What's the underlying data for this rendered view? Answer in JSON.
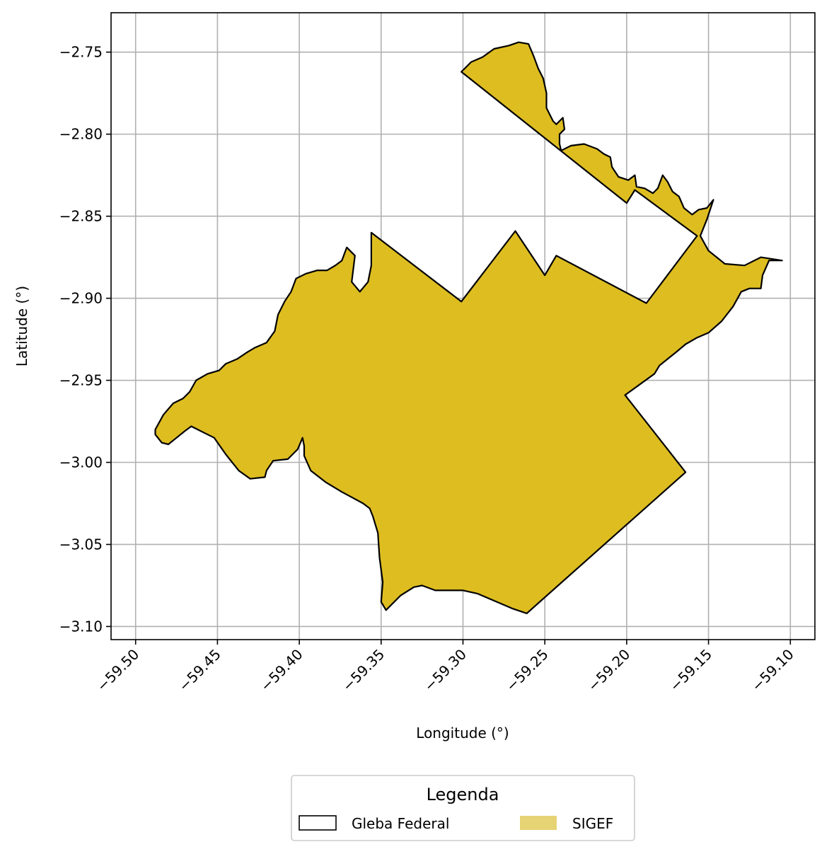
{
  "chart_data": {
    "type": "map",
    "xlabel": "Longitude (°)",
    "ylabel": "Latitude (°)",
    "xlim": [
      -59.515,
      -59.085
    ],
    "ylim": [
      -3.108,
      -2.726
    ],
    "xticks": [
      -59.5,
      -59.45,
      -59.4,
      -59.35,
      -59.3,
      -59.25,
      -59.2,
      -59.15,
      -59.1
    ],
    "xtick_labels": [
      "−59.50",
      "−59.45",
      "−59.40",
      "−59.35",
      "−59.30",
      "−59.25",
      "−59.20",
      "−59.15",
      "−59.10"
    ],
    "yticks": [
      -2.75,
      -2.8,
      -2.85,
      -2.9,
      -2.95,
      -3.0,
      -3.05,
      -3.1
    ],
    "ytick_labels": [
      "−2.75",
      "−2.80",
      "−2.85",
      "−2.90",
      "−2.95",
      "−3.00",
      "−3.05",
      "−3.10"
    ],
    "grid": true,
    "legend": {
      "title": "Legenda",
      "placement": "bottom-center",
      "entries": [
        {
          "label": "Gleba Federal",
          "style": "outline",
          "color": "#000000"
        },
        {
          "label": "SIGEF",
          "style": "fill",
          "color": "#e6d374"
        }
      ]
    },
    "colors": {
      "polygon_fill": "#debd21",
      "polygon_edge": "#000000",
      "grid": "#b0b0b0"
    },
    "polygons": [
      {
        "name": "main",
        "coords": [
          [
            -59.488,
            -2.98
          ],
          [
            -59.483,
            -2.971
          ],
          [
            -59.477,
            -2.964
          ],
          [
            -59.471,
            -2.961
          ],
          [
            -59.467,
            -2.957
          ],
          [
            -59.463,
            -2.95
          ],
          [
            -59.456,
            -2.946
          ],
          [
            -59.449,
            -2.944
          ],
          [
            -59.445,
            -2.94
          ],
          [
            -59.438,
            -2.937
          ],
          [
            -59.432,
            -2.933
          ],
          [
            -59.427,
            -2.93
          ],
          [
            -59.42,
            -2.927
          ],
          [
            -59.415,
            -2.92
          ],
          [
            -59.413,
            -2.91
          ],
          [
            -59.409,
            -2.902
          ],
          [
            -59.405,
            -2.896
          ],
          [
            -59.402,
            -2.888
          ],
          [
            -59.396,
            -2.885
          ],
          [
            -59.389,
            -2.883
          ],
          [
            -59.383,
            -2.883
          ],
          [
            -59.378,
            -2.88
          ],
          [
            -59.374,
            -2.877
          ],
          [
            -59.371,
            -2.869
          ],
          [
            -59.366,
            -2.874
          ],
          [
            -59.367,
            -2.882
          ],
          [
            -59.368,
            -2.89
          ],
          [
            -59.363,
            -2.896
          ],
          [
            -59.358,
            -2.89
          ],
          [
            -59.356,
            -2.88
          ],
          [
            -59.356,
            -2.86
          ],
          [
            -59.301,
            -2.902
          ],
          [
            -59.268,
            -2.859
          ],
          [
            -59.25,
            -2.886
          ],
          [
            -59.243,
            -2.874
          ],
          [
            -59.188,
            -2.903
          ],
          [
            -59.157,
            -2.862
          ],
          [
            -59.195,
            -2.834
          ],
          [
            -59.2,
            -2.842
          ],
          [
            -59.301,
            -2.762
          ],
          [
            -59.295,
            -2.756
          ],
          [
            -59.288,
            -2.753
          ],
          [
            -59.281,
            -2.748
          ],
          [
            -59.272,
            -2.746
          ],
          [
            -59.266,
            -2.744
          ],
          [
            -59.26,
            -2.745
          ],
          [
            -59.257,
            -2.752
          ],
          [
            -59.254,
            -2.76
          ],
          [
            -59.251,
            -2.766
          ],
          [
            -59.249,
            -2.775
          ],
          [
            -59.249,
            -2.784
          ],
          [
            -59.245,
            -2.792
          ],
          [
            -59.243,
            -2.794
          ],
          [
            -59.239,
            -2.79
          ],
          [
            -59.238,
            -2.797
          ],
          [
            -59.241,
            -2.8
          ],
          [
            -59.241,
            -2.806
          ],
          [
            -59.24,
            -2.81
          ],
          [
            -59.234,
            -2.807
          ],
          [
            -59.226,
            -2.806
          ],
          [
            -59.218,
            -2.809
          ],
          [
            -59.214,
            -2.812
          ],
          [
            -59.21,
            -2.814
          ],
          [
            -59.209,
            -2.82
          ],
          [
            -59.205,
            -2.826
          ],
          [
            -59.199,
            -2.828
          ],
          [
            -59.195,
            -2.825
          ],
          [
            -59.194,
            -2.832
          ],
          [
            -59.189,
            -2.833
          ],
          [
            -59.184,
            -2.836
          ],
          [
            -59.181,
            -2.833
          ],
          [
            -59.178,
            -2.825
          ],
          [
            -59.175,
            -2.829
          ],
          [
            -59.172,
            -2.835
          ],
          [
            -59.168,
            -2.838
          ],
          [
            -59.165,
            -2.845
          ],
          [
            -59.16,
            -2.849
          ],
          [
            -59.156,
            -2.846
          ],
          [
            -59.151,
            -2.845
          ],
          [
            -59.147,
            -2.84
          ],
          [
            -59.151,
            -2.852
          ],
          [
            -59.155,
            -2.862
          ],
          [
            -59.15,
            -2.871
          ],
          [
            -59.14,
            -2.879
          ],
          [
            -59.128,
            -2.88
          ],
          [
            -59.118,
            -2.875
          ],
          [
            -59.105,
            -2.877
          ],
          [
            -59.113,
            -2.877
          ],
          [
            -59.117,
            -2.886
          ],
          [
            -59.118,
            -2.894
          ],
          [
            -59.125,
            -2.894
          ],
          [
            -59.13,
            -2.896
          ],
          [
            -59.135,
            -2.905
          ],
          [
            -59.142,
            -2.914
          ],
          [
            -59.15,
            -2.921
          ],
          [
            -59.157,
            -2.924
          ],
          [
            -59.164,
            -2.928
          ],
          [
            -59.17,
            -2.933
          ],
          [
            -59.175,
            -2.937
          ],
          [
            -59.18,
            -2.941
          ],
          [
            -59.183,
            -2.946
          ],
          [
            -59.201,
            -2.959
          ],
          [
            -59.164,
            -3.006
          ],
          [
            -59.261,
            -3.092
          ],
          [
            -59.27,
            -3.089
          ],
          [
            -59.291,
            -3.08
          ],
          [
            -59.3,
            -3.078
          ],
          [
            -59.317,
            -3.078
          ],
          [
            -59.325,
            -3.075
          ],
          [
            -59.33,
            -3.076
          ],
          [
            -59.338,
            -3.081
          ],
          [
            -59.347,
            -3.09
          ],
          [
            -59.35,
            -3.085
          ],
          [
            -59.349,
            -3.073
          ],
          [
            -59.351,
            -3.058
          ],
          [
            -59.352,
            -3.043
          ],
          [
            -59.355,
            -3.033
          ],
          [
            -59.357,
            -3.028
          ],
          [
            -59.361,
            -3.025
          ],
          [
            -59.374,
            -3.018
          ],
          [
            -59.384,
            -3.012
          ],
          [
            -59.393,
            -3.005
          ],
          [
            -59.397,
            -2.996
          ],
          [
            -59.397,
            -2.99
          ],
          [
            -59.398,
            -2.985
          ],
          [
            -59.401,
            -2.992
          ],
          [
            -59.407,
            -2.998
          ],
          [
            -59.416,
            -2.999
          ],
          [
            -59.42,
            -3.005
          ],
          [
            -59.421,
            -3.009
          ],
          [
            -59.43,
            -3.01
          ],
          [
            -59.437,
            -3.005
          ],
          [
            -59.445,
            -2.995
          ],
          [
            -59.452,
            -2.985
          ],
          [
            -59.458,
            -2.982
          ],
          [
            -59.462,
            -2.98
          ],
          [
            -59.466,
            -2.978
          ],
          [
            -59.47,
            -2.981
          ],
          [
            -59.475,
            -2.985
          ],
          [
            -59.48,
            -2.989
          ],
          [
            -59.484,
            -2.988
          ],
          [
            -59.488,
            -2.983
          ],
          [
            -59.488,
            -2.98
          ]
        ]
      }
    ]
  }
}
